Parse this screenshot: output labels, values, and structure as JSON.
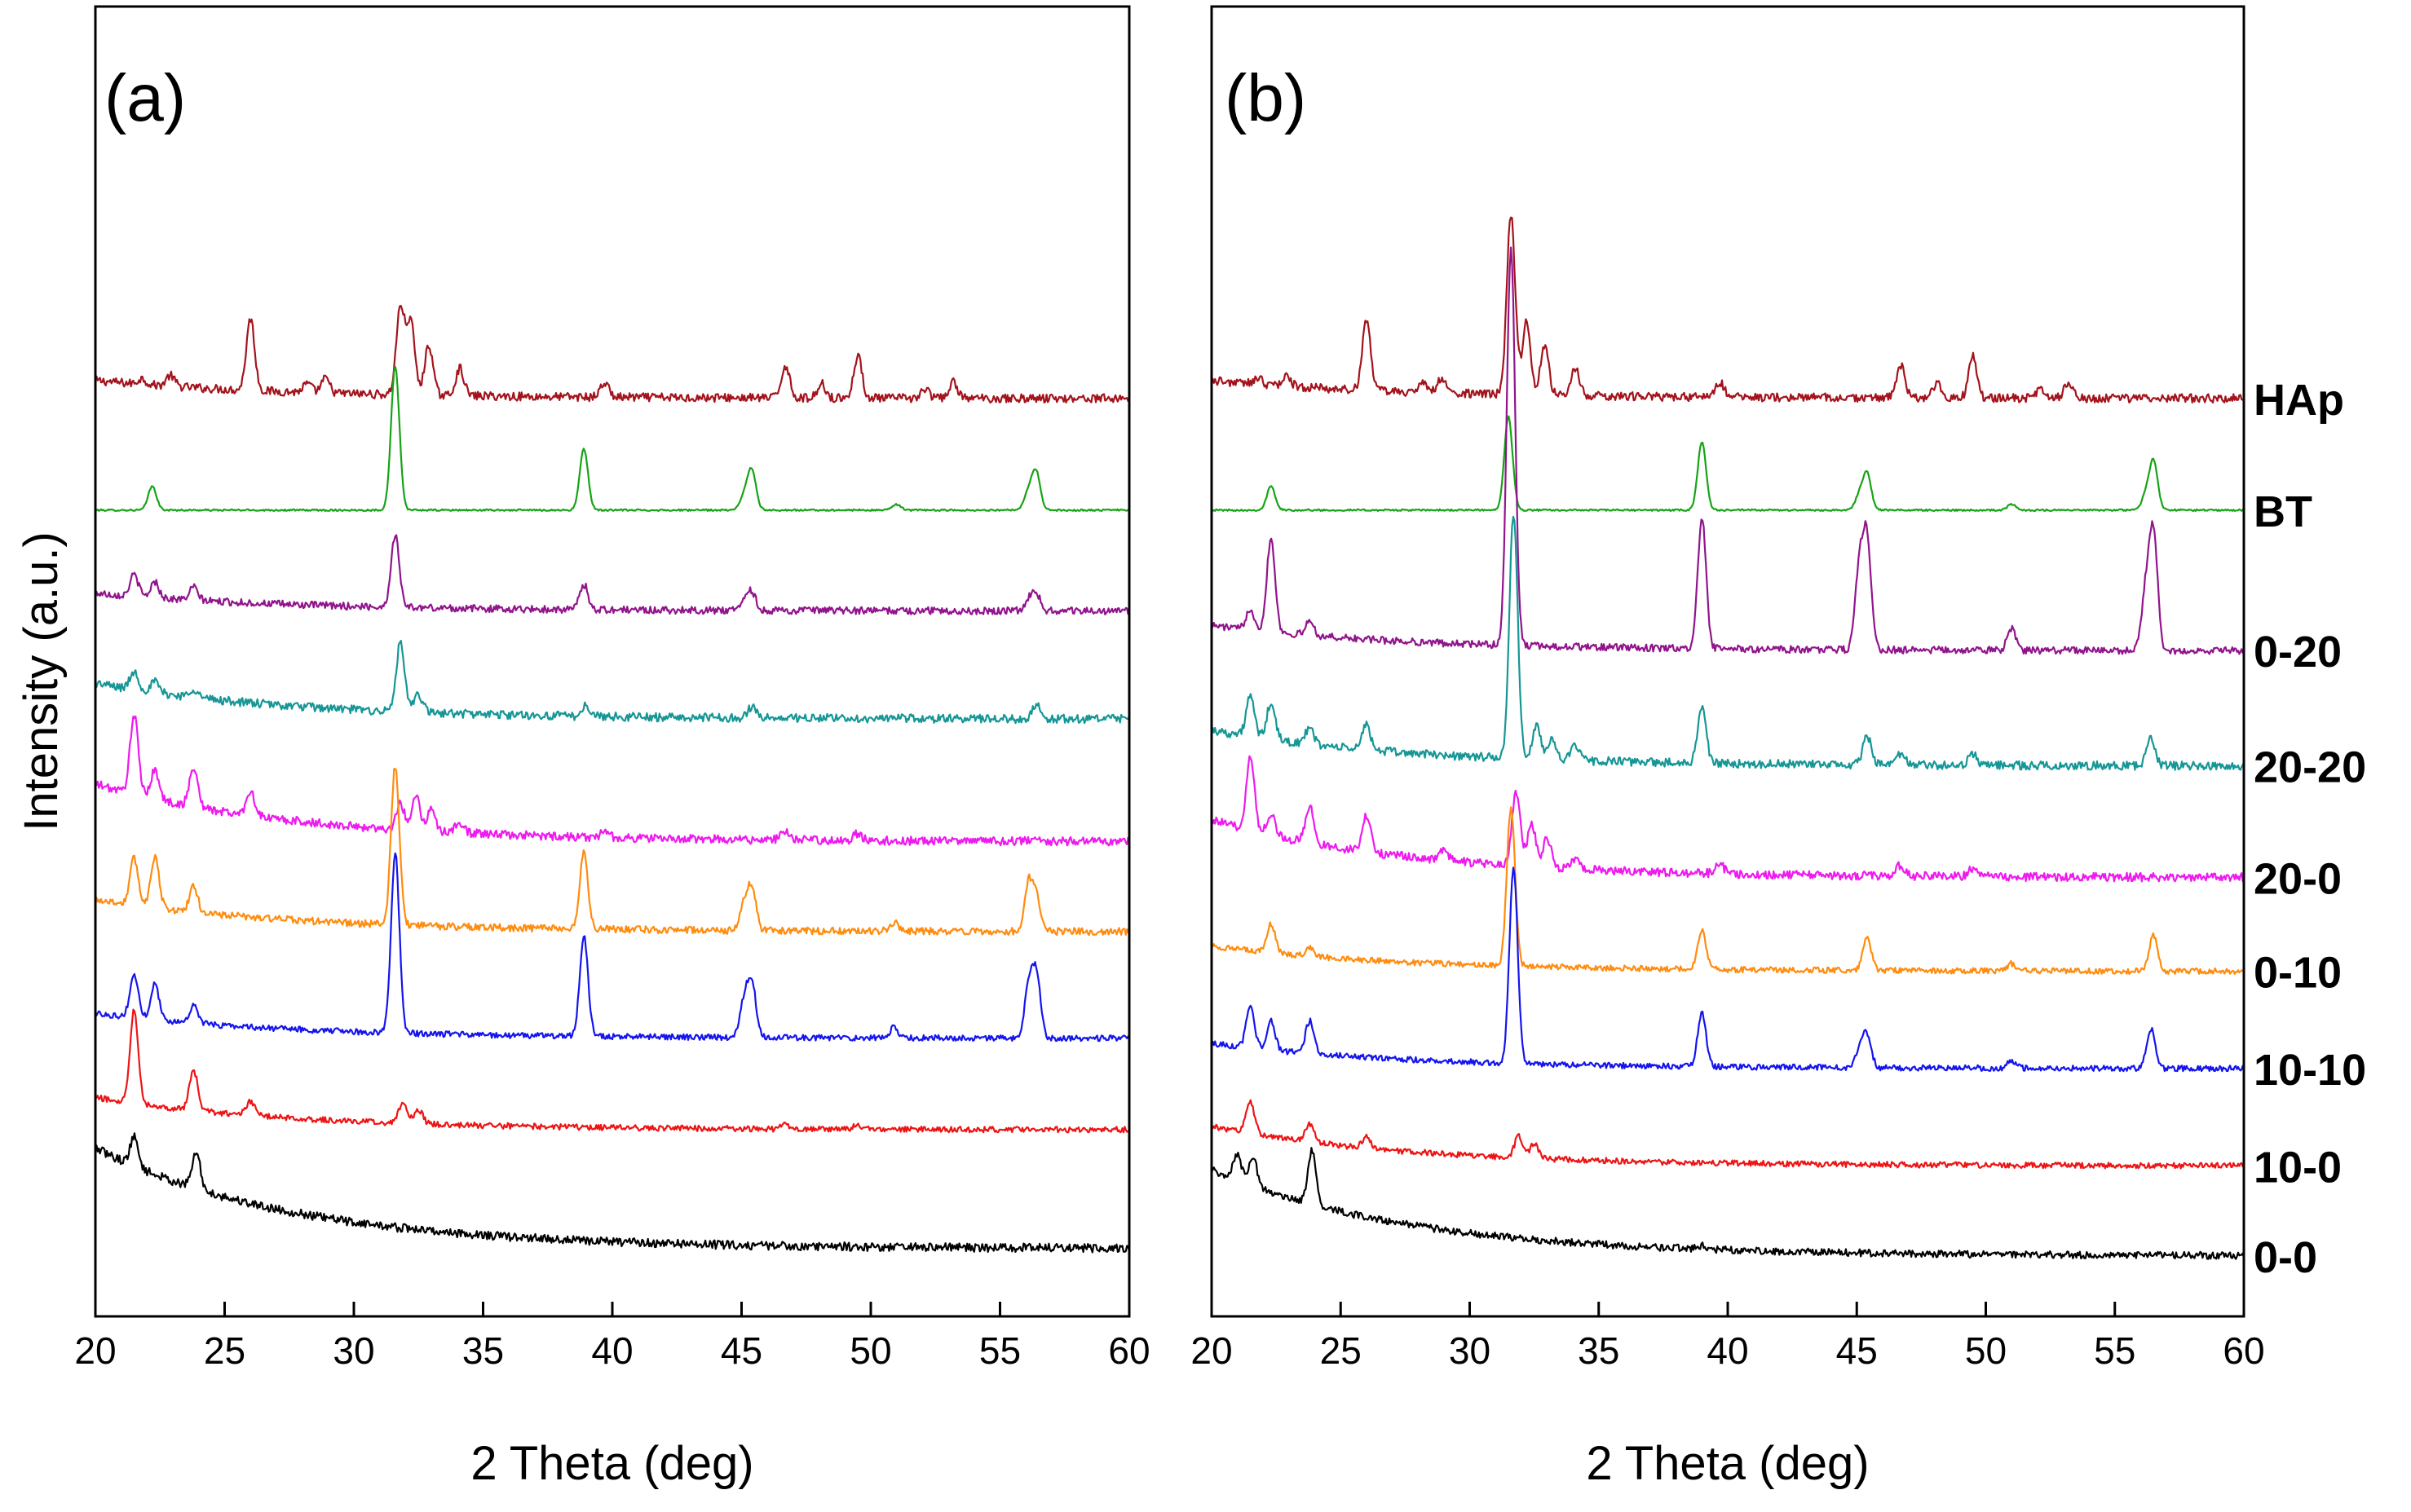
{
  "chart_data": [
    {
      "type": "line",
      "panel": "(a)",
      "xlabel": "2 Theta (deg)",
      "ylabel": "Intensity (a.u.)",
      "xlim": [
        20,
        60
      ],
      "xticks": [
        20,
        25,
        30,
        35,
        40,
        45,
        50,
        55,
        60
      ],
      "series": [
        {
          "name": "HAp",
          "color": "#a3131c",
          "baseline": 9.4,
          "amorph": 0.25,
          "noise": 0.06,
          "peaks": [
            [
              21.8,
              0.08
            ],
            [
              22.9,
              0.15
            ],
            [
              26.0,
              1.0
            ],
            [
              28.2,
              0.12
            ],
            [
              28.9,
              0.2
            ],
            [
              31.8,
              1.2
            ],
            [
              32.2,
              1.0
            ],
            [
              32.9,
              0.7
            ],
            [
              34.1,
              0.38
            ],
            [
              39.7,
              0.2
            ],
            [
              46.7,
              0.45
            ],
            [
              48.1,
              0.2
            ],
            [
              49.5,
              0.58
            ],
            [
              52.1,
              0.12
            ],
            [
              53.2,
              0.22
            ]
          ]
        },
        {
          "name": "BT",
          "color": "#16a316",
          "baseline": 7.85,
          "amorph": 0,
          "noise": 0.012,
          "peaks": [
            [
              22.2,
              0.33
            ],
            [
              31.6,
              2.0
            ],
            [
              38.9,
              0.85
            ],
            [
              45.1,
              0.2
            ],
            [
              45.4,
              0.55
            ],
            [
              51.0,
              0.08
            ],
            [
              56.1,
              0.25
            ],
            [
              56.4,
              0.52
            ]
          ]
        },
        {
          "name": "0-20",
          "color": "#91148c",
          "baseline": 6.45,
          "amorph": 0.25,
          "noise": 0.05,
          "peaks": [
            [
              21.5,
              0.3
            ],
            [
              22.3,
              0.22
            ],
            [
              23.8,
              0.18
            ],
            [
              31.6,
              1.0
            ],
            [
              38.9,
              0.35
            ],
            [
              45.1,
              0.15
            ],
            [
              45.4,
              0.24
            ],
            [
              56.1,
              0.15
            ],
            [
              56.4,
              0.24
            ]
          ]
        },
        {
          "name": "20-20",
          "color": "#169696",
          "baseline": 4.95,
          "amorph": 0.5,
          "noise": 0.06,
          "peaks": [
            [
              21.5,
              0.25
            ],
            [
              22.3,
              0.15
            ],
            [
              23.8,
              0.12
            ],
            [
              31.8,
              0.95
            ],
            [
              32.5,
              0.25
            ],
            [
              39.0,
              0.15
            ],
            [
              45.4,
              0.16
            ],
            [
              56.4,
              0.2
            ]
          ]
        },
        {
          "name": "20-0",
          "color": "#ee1aee",
          "baseline": 3.25,
          "amorph": 0.8,
          "noise": 0.06,
          "peaks": [
            [
              21.5,
              1.1
            ],
            [
              22.3,
              0.4
            ],
            [
              23.8,
              0.55
            ],
            [
              26.0,
              0.35
            ],
            [
              31.8,
              0.35
            ],
            [
              32.4,
              0.5
            ],
            [
              33.0,
              0.3
            ],
            [
              34.1,
              0.15
            ],
            [
              39.7,
              0.08
            ],
            [
              46.7,
              0.12
            ],
            [
              49.5,
              0.1
            ]
          ]
        },
        {
          "name": "0-10",
          "color": "#ff8c0f",
          "baseline": 2.0,
          "amorph": 0.45,
          "noise": 0.05,
          "peaks": [
            [
              21.5,
              0.65
            ],
            [
              22.3,
              0.72
            ],
            [
              23.8,
              0.35
            ],
            [
              31.6,
              2.2
            ],
            [
              38.9,
              1.05
            ],
            [
              45.1,
              0.35
            ],
            [
              45.4,
              0.6
            ],
            [
              50.9,
              0.12
            ],
            [
              56.1,
              0.65
            ],
            [
              56.4,
              0.45
            ]
          ]
        },
        {
          "name": "10-10",
          "color": "#1414ee",
          "baseline": 0.52,
          "amorph": 0.35,
          "noise": 0.04,
          "peaks": [
            [
              21.5,
              0.6
            ],
            [
              22.3,
              0.5
            ],
            [
              23.8,
              0.25
            ],
            [
              31.6,
              2.5
            ],
            [
              38.9,
              1.4
            ],
            [
              45.1,
              0.5
            ],
            [
              45.4,
              0.75
            ],
            [
              50.9,
              0.15
            ],
            [
              56.1,
              0.65
            ],
            [
              56.4,
              0.9
            ]
          ]
        },
        {
          "name": "10-0",
          "color": "#ee1414",
          "baseline": -0.75,
          "amorph": 0.45,
          "noise": 0.04,
          "peaks": [
            [
              21.5,
              1.3
            ],
            [
              23.8,
              0.55
            ],
            [
              26.0,
              0.2
            ],
            [
              31.9,
              0.3
            ],
            [
              32.5,
              0.2
            ],
            [
              46.7,
              0.06
            ],
            [
              49.5,
              0.06
            ]
          ]
        },
        {
          "name": "0-0",
          "color": "#000000",
          "baseline": -2.4,
          "amorph": 1.4,
          "noise": 0.06,
          "peaks": [
            [
              21.5,
              0.4
            ],
            [
              23.9,
              0.5
            ]
          ]
        }
      ]
    },
    {
      "type": "line",
      "panel": "(b)",
      "xlabel": "2 Theta (deg)",
      "ylabel": "",
      "xlim": [
        20,
        60
      ],
      "xticks": [
        20,
        25,
        30,
        35,
        40,
        45,
        50,
        55,
        60
      ],
      "series": [
        {
          "name": "HAp",
          "label": "HAp",
          "color": "#a3131c",
          "baseline": 9.4,
          "amorph": 0.25,
          "noise": 0.06,
          "peaks": [
            [
              21.8,
              0.08
            ],
            [
              22.9,
              0.15
            ],
            [
              26.0,
              1.0
            ],
            [
              28.2,
              0.12
            ],
            [
              28.9,
              0.2
            ],
            [
              31.6,
              2.5
            ],
            [
              32.2,
              1.0
            ],
            [
              32.9,
              0.7
            ],
            [
              34.1,
              0.38
            ],
            [
              39.7,
              0.2
            ],
            [
              46.7,
              0.45
            ],
            [
              48.1,
              0.2
            ],
            [
              49.5,
              0.58
            ],
            [
              52.1,
              0.12
            ],
            [
              53.2,
              0.22
            ]
          ]
        },
        {
          "name": "BT",
          "label": "BT",
          "color": "#16a316",
          "baseline": 7.85,
          "amorph": 0,
          "noise": 0.012,
          "peaks": [
            [
              22.3,
              0.33
            ],
            [
              31.5,
              1.3
            ],
            [
              39.0,
              0.95
            ],
            [
              45.1,
              0.2
            ],
            [
              45.4,
              0.5
            ],
            [
              51.0,
              0.08
            ],
            [
              56.2,
              0.2
            ],
            [
              56.5,
              0.68
            ]
          ]
        },
        {
          "name": "0-20",
          "label": "0-20",
          "color": "#91148c",
          "baseline": 5.9,
          "amorph": 0.35,
          "noise": 0.05,
          "peaks": [
            [
              21.5,
              0.3
            ],
            [
              22.3,
              1.3
            ],
            [
              23.8,
              0.2
            ],
            [
              31.6,
              5.5
            ],
            [
              39.0,
              1.8
            ],
            [
              45.1,
              1.1
            ],
            [
              45.4,
              1.5
            ],
            [
              51.0,
              0.3
            ],
            [
              56.2,
              0.8
            ],
            [
              56.5,
              1.6
            ]
          ]
        },
        {
          "name": "20-20",
          "label": "20-20",
          "color": "#169696",
          "baseline": 4.3,
          "amorph": 0.5,
          "noise": 0.06,
          "peaks": [
            [
              21.5,
              0.55
            ],
            [
              22.3,
              0.5
            ],
            [
              23.8,
              0.22
            ],
            [
              26.0,
              0.35
            ],
            [
              31.7,
              3.4
            ],
            [
              32.6,
              0.45
            ],
            [
              33.2,
              0.3
            ],
            [
              34.1,
              0.2
            ],
            [
              39.0,
              0.8
            ],
            [
              45.4,
              0.4
            ],
            [
              46.7,
              0.15
            ],
            [
              49.5,
              0.15
            ],
            [
              56.4,
              0.4
            ]
          ]
        },
        {
          "name": "20-0",
          "label": "20-0",
          "color": "#ee1aee",
          "baseline": 2.75,
          "amorph": 0.8,
          "noise": 0.06,
          "peaks": [
            [
              21.5,
              1.0
            ],
            [
              22.3,
              0.3
            ],
            [
              23.8,
              0.5
            ],
            [
              26.0,
              0.5
            ],
            [
              29.0,
              0.15
            ],
            [
              31.8,
              1.0
            ],
            [
              32.4,
              0.6
            ],
            [
              33.0,
              0.4
            ],
            [
              34.1,
              0.15
            ],
            [
              39.7,
              0.12
            ],
            [
              46.7,
              0.15
            ],
            [
              49.5,
              0.12
            ]
          ]
        },
        {
          "name": "0-10",
          "label": "0-10",
          "color": "#ff8c0f",
          "baseline": 1.45,
          "amorph": 0.35,
          "noise": 0.04,
          "peaks": [
            [
              22.3,
              0.4
            ],
            [
              23.8,
              0.12
            ],
            [
              31.6,
              2.2
            ],
            [
              39.0,
              0.55
            ],
            [
              45.4,
              0.45
            ],
            [
              51.0,
              0.1
            ],
            [
              56.5,
              0.5
            ]
          ]
        },
        {
          "name": "10-10",
          "label": "10-10",
          "color": "#1414ee",
          "baseline": 0.1,
          "amorph": 0.35,
          "noise": 0.04,
          "peaks": [
            [
              21.5,
              0.55
            ],
            [
              22.3,
              0.4
            ],
            [
              23.8,
              0.45
            ],
            [
              31.7,
              2.7
            ],
            [
              39.0,
              0.75
            ],
            [
              45.1,
              0.25
            ],
            [
              45.4,
              0.45
            ],
            [
              51.0,
              0.1
            ],
            [
              56.4,
              0.55
            ]
          ]
        },
        {
          "name": "10-0",
          "label": "10-0",
          "color": "#ee1414",
          "baseline": -1.25,
          "amorph": 0.55,
          "noise": 0.04,
          "peaks": [
            [
              21.5,
              0.45
            ],
            [
              23.8,
              0.25
            ],
            [
              26.0,
              0.15
            ],
            [
              31.9,
              0.3
            ],
            [
              32.5,
              0.2
            ]
          ]
        },
        {
          "name": "0-0",
          "label": "0-0",
          "color": "#000000",
          "baseline": -2.5,
          "amorph": 1.2,
          "noise": 0.05,
          "peaks": [
            [
              21.0,
              0.35
            ],
            [
              21.6,
              0.4
            ],
            [
              23.9,
              0.75
            ],
            [
              39.0,
              0.05
            ]
          ]
        }
      ]
    }
  ]
}
